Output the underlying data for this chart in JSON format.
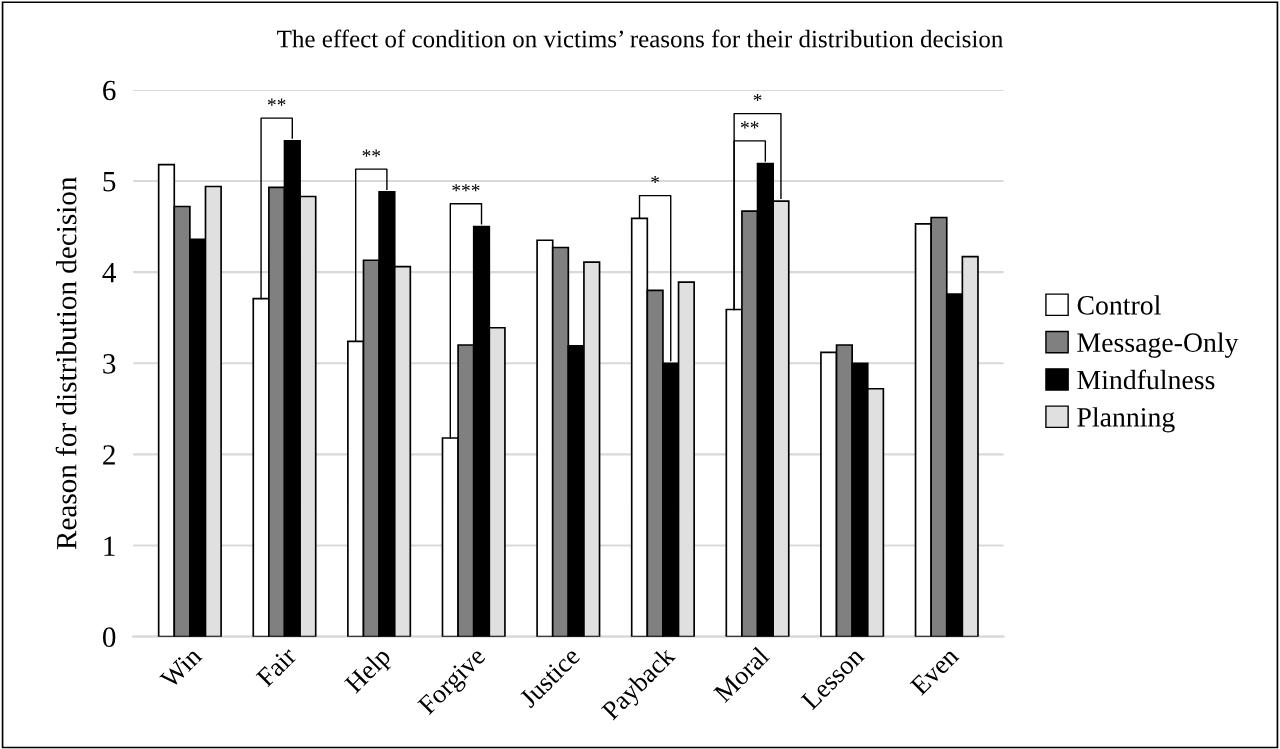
{
  "chart_data": {
    "type": "bar",
    "title": "The effect of condition on victims’ reasons for their distribution decision",
    "ylabel": "Reason for distribution decision",
    "categories": [
      "Win",
      "Fair",
      "Help",
      "Forgive",
      "Justice",
      "Payback",
      "Moral",
      "Lesson",
      "Even"
    ],
    "series": [
      {
        "name": "Control",
        "color": "#ffffff",
        "values": [
          5.18,
          3.71,
          3.24,
          2.18,
          4.35,
          4.59,
          3.59,
          3.12,
          4.53
        ]
      },
      {
        "name": "Message-Only",
        "color": "#808080",
        "values": [
          4.72,
          4.93,
          4.13,
          3.2,
          4.27,
          3.8,
          4.67,
          3.2,
          4.6
        ]
      },
      {
        "name": "Mindfulness",
        "color": "#000000",
        "values": [
          4.36,
          5.44,
          4.88,
          4.5,
          3.19,
          3.0,
          5.19,
          3.0,
          3.76
        ]
      },
      {
        "name": "Planning",
        "color": "#e0e0e0",
        "values": [
          4.94,
          4.83,
          4.06,
          3.39,
          4.11,
          3.89,
          4.78,
          2.72,
          4.17
        ]
      }
    ],
    "ylim": [
      0,
      6
    ],
    "yticks": [
      0,
      1,
      2,
      3,
      4,
      5,
      6
    ],
    "grid": "y",
    "legend": "right",
    "annotations": [
      "**",
      "**",
      "***",
      "*",
      "**",
      "*"
    ]
  }
}
